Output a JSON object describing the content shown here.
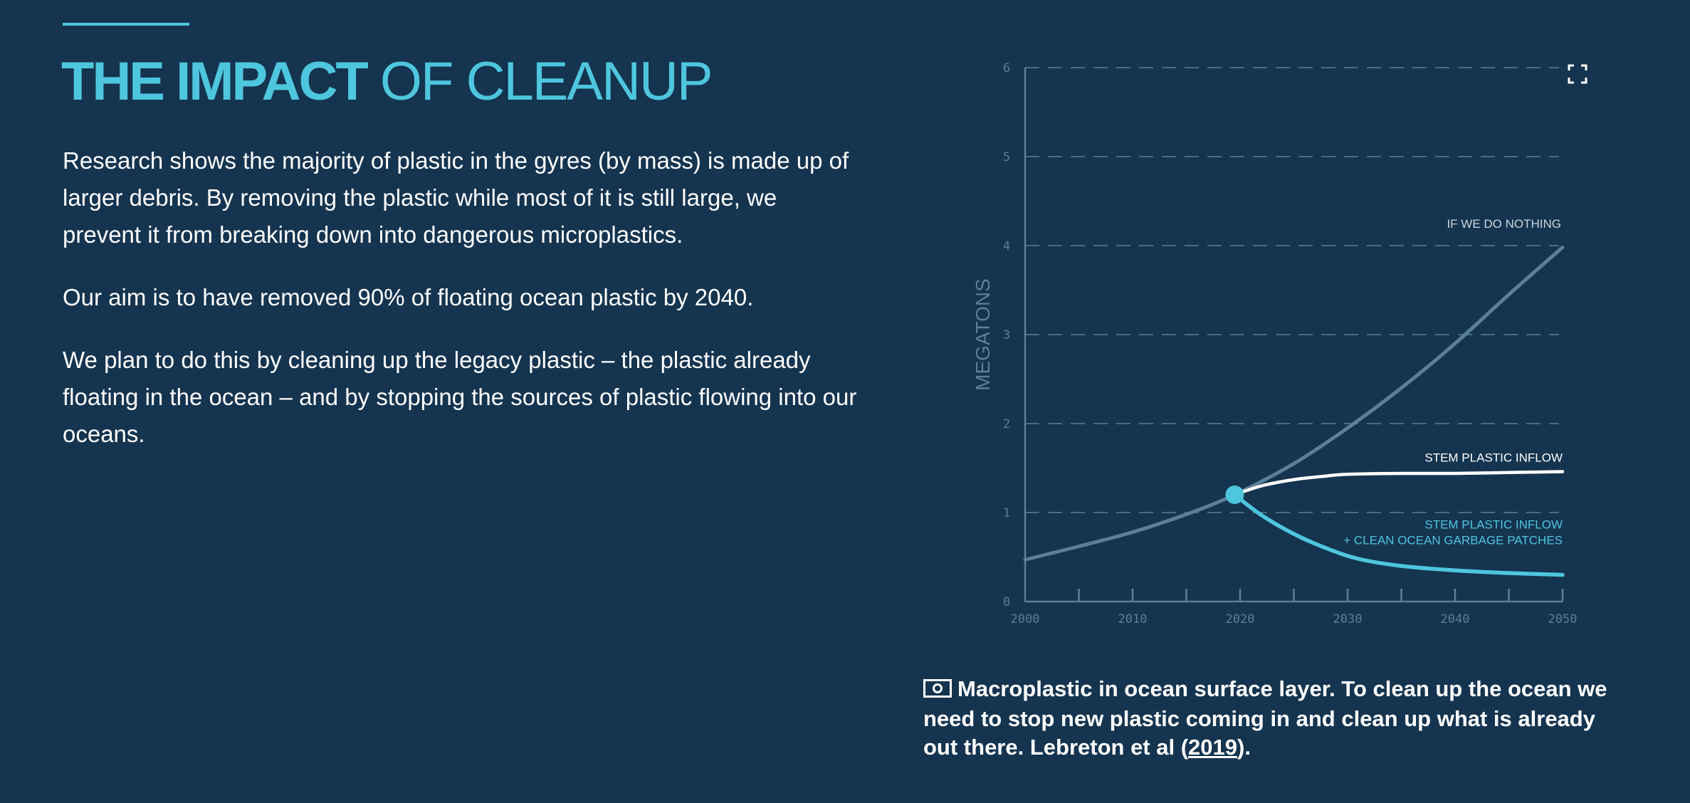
{
  "header": {
    "title_bold": "THE IMPACT",
    "title_light": "OF CLEANUP"
  },
  "body": {
    "paragraphs": [
      "Research shows the majority of plastic in the gyres (by mass) is made up of larger debris. By removing the plastic while most of it is still large, we prevent it from breaking down into dangerous microplastics.",
      "Our aim is to have removed 90% of floating ocean plastic by 2040.",
      "We plan to do this by cleaning up the legacy plastic – the plastic already floating in the ocean – and by stopping the sources of plastic flowing into our oceans."
    ]
  },
  "caption": {
    "icon": "camera-icon",
    "text": "Macroplastic in ocean surface layer. To clean up the ocean we need to stop new plastic coming in and clean up what is already out there. Lebreton et al (",
    "link_text": "2019",
    "text_end": ")."
  },
  "expand_icon": "expand-icon",
  "chart_data": {
    "type": "line",
    "xlabel": "",
    "ylabel": "MEGATONS",
    "xlim": [
      2000,
      2050
    ],
    "ylim": [
      0,
      6
    ],
    "x_ticks": [
      "2000",
      "2010",
      "2020",
      "2030",
      "2040",
      "2050"
    ],
    "y_ticks": [
      "0",
      "1",
      "2",
      "3",
      "4",
      "5",
      "6"
    ],
    "grid": true,
    "marker": {
      "x": 2019.5,
      "y": 1.2
    },
    "colors": {
      "nothing": "#5a7f99",
      "stem": "#ffffff",
      "clean": "#4ec6dd",
      "grid": "#5a7f99",
      "axis": "#5a7f99"
    },
    "series": [
      {
        "name": "IF WE DO NOTHING",
        "x": [
          2000,
          2005,
          2010,
          2015,
          2019.5,
          2025,
          2030,
          2035,
          2040,
          2045,
          2050
        ],
        "y": [
          0.47,
          0.62,
          0.78,
          0.98,
          1.2,
          1.55,
          1.95,
          2.4,
          2.9,
          3.45,
          3.98
        ]
      },
      {
        "name": "STEM PLASTIC INFLOW",
        "x": [
          2019.5,
          2022,
          2025,
          2028,
          2030,
          2035,
          2040,
          2045,
          2050
        ],
        "y": [
          1.2,
          1.3,
          1.37,
          1.41,
          1.43,
          1.44,
          1.44,
          1.45,
          1.46
        ]
      },
      {
        "name": "STEM PLASTIC INFLOW + CLEAN OCEAN GARBAGE PATCHES",
        "x": [
          2019.5,
          2022,
          2025,
          2028,
          2031,
          2035,
          2040,
          2045,
          2050
        ],
        "y": [
          1.2,
          0.97,
          0.76,
          0.6,
          0.48,
          0.4,
          0.35,
          0.32,
          0.3
        ]
      }
    ],
    "series_labels": {
      "nothing": "IF WE DO NOTHING",
      "stem": "STEM PLASTIC INFLOW",
      "clean_line1": "STEM PLASTIC INFLOW",
      "clean_line2": "+ CLEAN OCEAN GARBAGE PATCHES"
    }
  }
}
